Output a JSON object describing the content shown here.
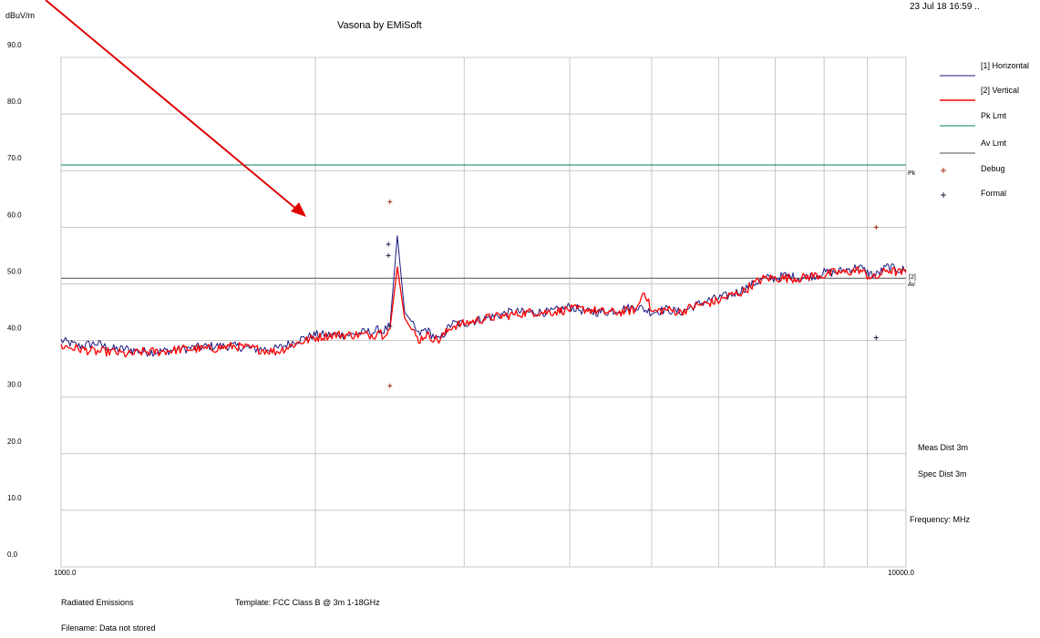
{
  "header": {
    "title": "Vasona by EMiSoft",
    "timestamp": "23 Jul 18 16:59 .."
  },
  "footer": {
    "test_type": "Radiated Emissions",
    "template": "Template: FCC Class B @ 3m 1-18GHz",
    "filename": "Filename: Data not stored"
  },
  "side_info": {
    "meas_dist": "Meas Dist 3m",
    "spec_dist": "Spec Dist 3m",
    "frequency": "Frequency: MHz"
  },
  "colors": {
    "horizontal": "#1a1a80",
    "vertical": "#ff0000",
    "pk_limit": "#008060",
    "av_limit": "#505050",
    "debug_marker": "#a03010",
    "formal_marker": "#202040",
    "annotation_arrow": "#e00000",
    "grid": "#c8c8c8"
  },
  "chart_data": {
    "type": "line",
    "title": "Vasona by EMiSoft",
    "ylabel": "dBuV/m",
    "xlabel": "Frequency: MHz",
    "x_scale": "log",
    "xlim": [
      1000.0,
      10000.0
    ],
    "ylim": [
      0.0,
      90.0
    ],
    "x_tick_labels": [
      "1000.0",
      "10000.0"
    ],
    "y_ticks": [
      0,
      10,
      20,
      30,
      40,
      50,
      60,
      70,
      80,
      90
    ],
    "y_tick_labels": [
      "0.0",
      "10.0",
      "20.0",
      "30.0",
      "40.0",
      "50.0",
      "60.0",
      "70.0",
      "80.0",
      "90.0"
    ],
    "x_gridlines": [
      2000,
      3000,
      4000,
      5000,
      6000,
      7000,
      8000,
      9000
    ],
    "grid": true,
    "legend": [
      {
        "label": "[1] Horizontal",
        "kind": "line",
        "color_key": "horizontal"
      },
      {
        "label": "[2] Vertical",
        "kind": "line",
        "color_key": "vertical"
      },
      {
        "label": "Pk Lmt",
        "kind": "line",
        "color_key": "pk_limit"
      },
      {
        "label": "Av Lmt",
        "kind": "line",
        "color_key": "av_limit"
      },
      {
        "label": "Debug",
        "kind": "marker",
        "color_key": "debug_marker"
      },
      {
        "label": "Formal",
        "kind": "marker",
        "color_key": "formal_marker"
      }
    ],
    "legend_placement": "right",
    "limits": [
      {
        "name": "Pk Lmt",
        "value": 71.0,
        "end_label": "Pk"
      },
      {
        "name": "Av Lmt",
        "value": 51.0,
        "end_label": "Av"
      }
    ],
    "trace_end_label": "[2]",
    "series": [
      {
        "name": "[1] Horizontal",
        "x": [
          1000,
          1050,
          1100,
          1150,
          1200,
          1250,
          1300,
          1400,
          1500,
          1600,
          1700,
          1800,
          1900,
          2000,
          2100,
          2200,
          2300,
          2350,
          2380,
          2400,
          2420,
          2450,
          2500,
          2550,
          2600,
          2650,
          2700,
          2800,
          2900,
          3000,
          3200,
          3400,
          3600,
          3800,
          4000,
          4200,
          4400,
          4600,
          4800,
          5000,
          5200,
          5400,
          5600,
          5800,
          6000,
          6200,
          6400,
          6600,
          6800,
          7000,
          7200,
          7500,
          7800,
          8000,
          8200,
          8500,
          8800,
          9000,
          9200,
          9500,
          9800,
          10000
        ],
        "y": [
          40.0,
          39.0,
          39.5,
          38.5,
          38.5,
          38.0,
          38.0,
          38.5,
          39.0,
          39.0,
          38.5,
          38.5,
          40.0,
          41.0,
          41.0,
          41.0,
          41.5,
          41.5,
          42.0,
          41.5,
          42.0,
          42.5,
          58.5,
          45.0,
          43.0,
          41.0,
          42.0,
          40.0,
          43.0,
          43.0,
          44.0,
          45.0,
          45.0,
          45.0,
          46.0,
          45.0,
          45.0,
          45.5,
          46.0,
          45.0,
          45.5,
          45.0,
          46.0,
          47.0,
          47.5,
          48.0,
          49.0,
          50.0,
          51.0,
          51.0,
          51.5,
          51.0,
          51.5,
          52.0,
          52.0,
          52.5,
          53.0,
          52.0,
          51.5,
          53.0,
          52.5,
          52.5
        ]
      },
      {
        "name": "[2] Vertical",
        "x": [
          1000,
          1050,
          1100,
          1150,
          1200,
          1250,
          1300,
          1400,
          1500,
          1600,
          1700,
          1800,
          1900,
          2000,
          2100,
          2200,
          2300,
          2350,
          2380,
          2400,
          2420,
          2450,
          2500,
          2550,
          2600,
          2650,
          2700,
          2800,
          2900,
          3000,
          3200,
          3400,
          3600,
          3800,
          4000,
          4200,
          4400,
          4600,
          4800,
          4900,
          5000,
          5200,
          5400,
          5600,
          5800,
          6000,
          6200,
          6400,
          6600,
          6800,
          7000,
          7200,
          7500,
          7800,
          8000,
          8200,
          8500,
          8800,
          9000,
          9200,
          9500,
          9800,
          10000
        ],
        "y": [
          39.0,
          38.5,
          38.0,
          38.0,
          37.5,
          38.0,
          38.0,
          38.5,
          38.5,
          39.0,
          38.5,
          38.0,
          39.5,
          40.5,
          41.0,
          41.0,
          41.0,
          41.0,
          42.0,
          41.0,
          41.5,
          42.0,
          53.0,
          44.0,
          42.0,
          40.0,
          41.0,
          40.0,
          42.5,
          43.0,
          44.0,
          44.5,
          45.0,
          45.0,
          45.5,
          45.5,
          45.0,
          45.0,
          45.5,
          49.0,
          45.0,
          45.5,
          45.0,
          46.0,
          46.5,
          47.0,
          48.0,
          48.5,
          50.0,
          51.0,
          51.0,
          51.0,
          51.0,
          51.5,
          51.5,
          52.0,
          52.0,
          52.5,
          51.5,
          51.0,
          52.5,
          52.0,
          52.0
        ]
      }
    ],
    "markers": [
      {
        "name": "Debug",
        "x": 2450,
        "y": 64.5
      },
      {
        "name": "Debug",
        "x": 2450,
        "y": 32.0
      },
      {
        "name": "Debug",
        "x": 9220,
        "y": 60.0
      },
      {
        "name": "Formal",
        "x": 2440,
        "y": 57.0
      },
      {
        "name": "Formal",
        "x": 2440,
        "y": 55.0
      },
      {
        "name": "Formal",
        "x": 2450,
        "y": 42.5
      },
      {
        "name": "Formal",
        "x": 9220,
        "y": 40.5
      }
    ]
  }
}
